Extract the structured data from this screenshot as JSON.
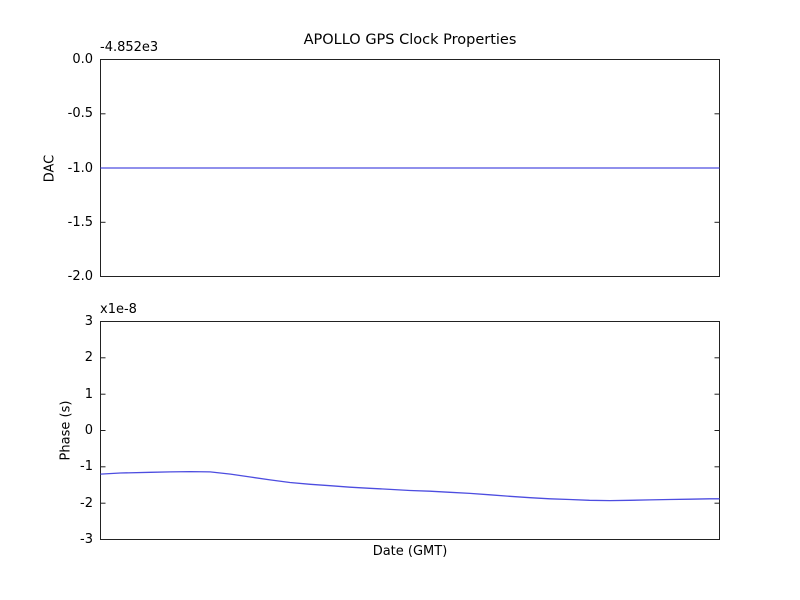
{
  "figure": {
    "background": "#ffffff",
    "frame_color": "#222222",
    "line_color": "#4d4de0",
    "text_color": "#000000"
  },
  "chart_data": [
    {
      "type": "line",
      "title": "APOLLO GPS Clock Properties",
      "ylabel": "DAC",
      "offset_text": "-4.852e3",
      "ylim": [
        -2.0,
        0.0
      ],
      "yticks": [
        0.0,
        -0.5,
        -1.0,
        -1.5,
        -2.0
      ],
      "ytick_labels": [
        "0.0",
        "-0.5",
        "-1.0",
        "-1.5",
        "-2.0"
      ],
      "grid": false,
      "x": [
        0,
        1
      ],
      "y": [
        -1.0,
        -1.0
      ]
    },
    {
      "type": "line",
      "ylabel": "Phase (s)",
      "xlabel": "Date (GMT)",
      "multiplier_text": "x1e-8",
      "ylim": [
        -3,
        3
      ],
      "yticks": [
        3,
        2,
        1,
        0,
        -1,
        -2,
        -3
      ],
      "ytick_labels": [
        "3",
        "2",
        "1",
        "0",
        "-1",
        "-2",
        "-3"
      ],
      "grid": false,
      "x": [
        0,
        0.032,
        0.081,
        0.113,
        0.145,
        0.177,
        0.21,
        0.242,
        0.274,
        0.306,
        0.339,
        0.371,
        0.403,
        0.435,
        0.468,
        0.5,
        0.532,
        0.565,
        0.597,
        0.629,
        0.661,
        0.694,
        0.726,
        0.758,
        0.79,
        0.823,
        0.855,
        0.887,
        0.919,
        0.952,
        0.984,
        1
      ],
      "y": [
        -1.2,
        -1.17,
        -1.15,
        -1.14,
        -1.13,
        -1.14,
        -1.2,
        -1.28,
        -1.36,
        -1.43,
        -1.48,
        -1.52,
        -1.56,
        -1.59,
        -1.62,
        -1.65,
        -1.67,
        -1.7,
        -1.73,
        -1.77,
        -1.81,
        -1.85,
        -1.88,
        -1.9,
        -1.92,
        -1.93,
        -1.92,
        -1.91,
        -1.9,
        -1.89,
        -1.88,
        -1.88
      ]
    }
  ]
}
